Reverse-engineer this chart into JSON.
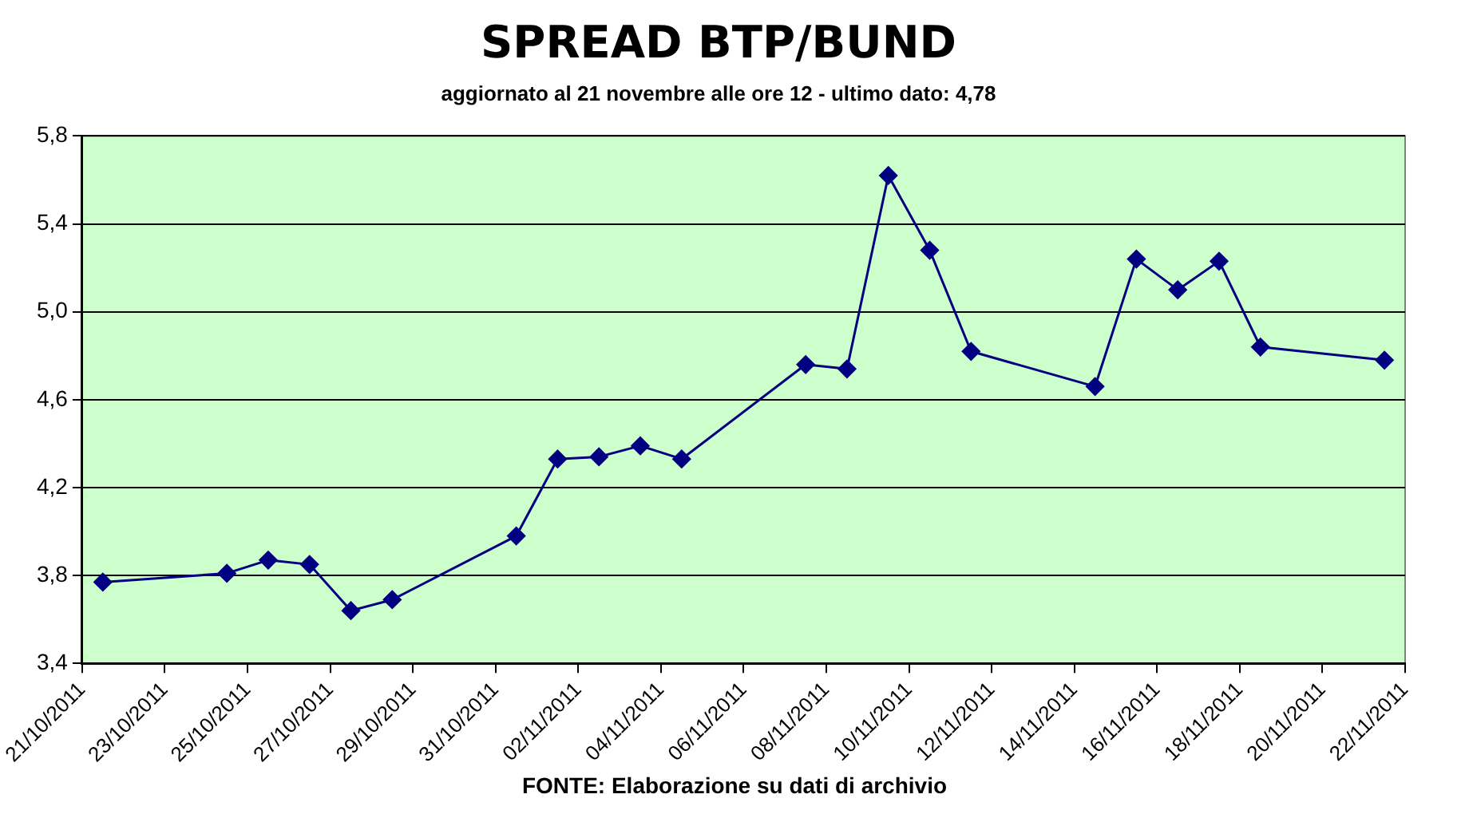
{
  "chart_data": {
    "type": "line",
    "title": "SPREAD BTP/BUND",
    "subtitle": "aggiornato al 21 novembre alle ore 12 - ultimo dato: 4,78",
    "annotations": [
      "FONTE: Elaborazione su dati di archivio"
    ],
    "x": [
      "2011-10-21T12:00",
      "2011-10-24T12:00",
      "2011-10-25T12:00",
      "2011-10-26T12:00",
      "2011-10-27T12:00",
      "2011-10-28T12:00",
      "2011-10-31T12:00",
      "2011-11-01T12:00",
      "2011-11-02T12:00",
      "2011-11-03T12:00",
      "2011-11-04T12:00",
      "2011-11-07T12:00",
      "2011-11-08T12:00",
      "2011-11-09T12:00",
      "2011-11-10T12:00",
      "2011-11-11T12:00",
      "2011-11-14T12:00",
      "2011-11-15T12:00",
      "2011-11-16T12:00",
      "2011-11-17T12:00",
      "2011-11-18T12:00",
      "2011-11-21T12:00"
    ],
    "series": [
      {
        "color": "#000080",
        "values": [
          3.77,
          3.81,
          3.87,
          3.85,
          3.64,
          3.69,
          3.98,
          4.33,
          4.34,
          4.39,
          4.33,
          4.76,
          4.74,
          5.62,
          5.28,
          4.82,
          4.66,
          5.24,
          5.1,
          5.23,
          4.84,
          4.78
        ]
      }
    ],
    "xlim": [
      "2011-10-21",
      "2011-11-22"
    ],
    "xticks": [
      {
        "value": "2011-10-21",
        "label": "21/10/2011"
      },
      {
        "value": "2011-10-23",
        "label": "23/10/2011"
      },
      {
        "value": "2011-10-25",
        "label": "25/10/2011"
      },
      {
        "value": "2011-10-27",
        "label": "27/10/2011"
      },
      {
        "value": "2011-10-29",
        "label": "29/10/2011"
      },
      {
        "value": "2011-10-31",
        "label": "31/10/2011"
      },
      {
        "value": "2011-11-02",
        "label": "02/11/2011"
      },
      {
        "value": "2011-11-04",
        "label": "04/11/2011"
      },
      {
        "value": "2011-11-06",
        "label": "06/11/2011"
      },
      {
        "value": "2011-11-08",
        "label": "08/11/2011"
      },
      {
        "value": "2011-11-10",
        "label": "10/11/2011"
      },
      {
        "value": "2011-11-12",
        "label": "12/11/2011"
      },
      {
        "value": "2011-11-14",
        "label": "14/11/2011"
      },
      {
        "value": "2011-11-16",
        "label": "16/11/2011"
      },
      {
        "value": "2011-11-18",
        "label": "18/11/2011"
      },
      {
        "value": "2011-11-20",
        "label": "20/11/2011"
      },
      {
        "value": "2011-11-22",
        "label": "22/11/2011"
      }
    ],
    "ylim": [
      3.4,
      5.8
    ],
    "yticks": [
      {
        "value": 3.4,
        "label": "3,4"
      },
      {
        "value": 3.8,
        "label": "3,8"
      },
      {
        "value": 4.2,
        "label": "4,2"
      },
      {
        "value": 4.6,
        "label": "4,6"
      },
      {
        "value": 5.0,
        "label": "5,0"
      },
      {
        "value": 5.4,
        "label": "5,4"
      },
      {
        "value": 5.8,
        "label": "5,8"
      }
    ],
    "grid": "y",
    "legend": false,
    "marker": "diamond",
    "line_style": "solid"
  }
}
